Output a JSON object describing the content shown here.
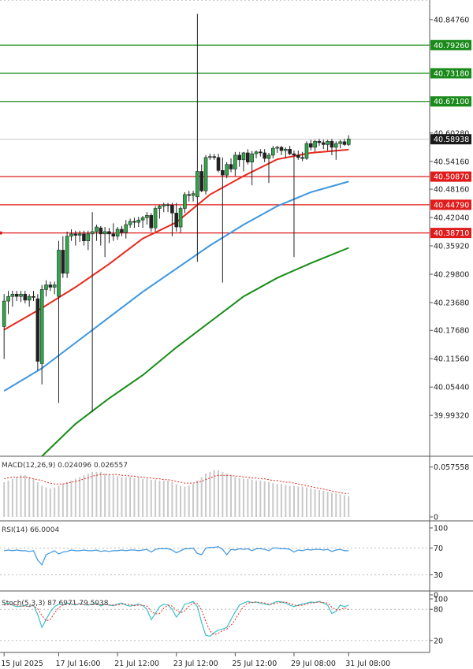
{
  "chart_data": {
    "type": "candlestick",
    "price_axis": {
      "ylim": [
        39.905,
        40.89
      ],
      "ticks": [
        "40.84760",
        "40.60280",
        "40.54160",
        "40.48160",
        "40.42040",
        "40.35920",
        "40.29800",
        "40.23680",
        "40.17680",
        "40.11560",
        "40.05440",
        "39.99320"
      ],
      "tick_values": [
        40.8476,
        40.6028,
        40.5416,
        40.4816,
        40.4204,
        40.3592,
        40.298,
        40.2368,
        40.1768,
        40.1156,
        40.0544,
        39.9932
      ]
    },
    "time_axis": {
      "labels": [
        "15 Jul 2025",
        "17 Jul 16:00",
        "21 Jul 12:00",
        "23 Jul 12:00",
        "25 Jul 12:00",
        "29 Jul 08:00",
        "31 Jul 08:00"
      ],
      "label_bar_index": [
        0,
        13,
        27,
        41,
        55,
        69,
        82
      ]
    },
    "current_price": {
      "value": 40.58938,
      "label": "40.58938"
    },
    "levels": [
      {
        "value": 40.7926,
        "label": "40.79260",
        "color": "#1a8a1a"
      },
      {
        "value": 40.7318,
        "label": "40.73180",
        "color": "#1a8a1a"
      },
      {
        "value": 40.671,
        "label": "40.67100",
        "color": "#1a8a1a"
      },
      {
        "value": 40.5087,
        "label": "40.50870",
        "color": "#e01b1b"
      },
      {
        "value": 40.4479,
        "label": "40.44790",
        "color": "#e01b1b"
      },
      {
        "value": 40.3871,
        "label": "40.38710",
        "color": "#e01b1b"
      }
    ],
    "candles": {
      "count": 83,
      "ohlc": [
        [
          40.185,
          40.255,
          40.115,
          40.24
        ],
        [
          40.24,
          40.262,
          40.212,
          40.25
        ],
        [
          40.25,
          40.262,
          40.228,
          40.255
        ],
        [
          40.255,
          40.262,
          40.24,
          40.25
        ],
        [
          40.25,
          40.262,
          40.238,
          40.255
        ],
        [
          40.255,
          40.262,
          40.235,
          40.242
        ],
        [
          40.242,
          40.255,
          40.228,
          40.25
        ],
        [
          40.25,
          40.262,
          40.24,
          40.248
        ],
        [
          40.245,
          40.255,
          40.09,
          40.11
        ],
        [
          40.105,
          40.275,
          40.06,
          40.265
        ],
        [
          40.265,
          40.285,
          40.25,
          40.275
        ],
        [
          40.275,
          40.282,
          40.262,
          40.27
        ],
        [
          40.27,
          40.282,
          40.255,
          40.275
        ],
        [
          40.25,
          40.37,
          40.02,
          40.35
        ],
        [
          40.35,
          40.38,
          40.29,
          40.3
        ],
        [
          40.3,
          40.39,
          40.29,
          40.38
        ],
        [
          40.38,
          40.395,
          40.37,
          40.385
        ],
        [
          40.385,
          40.392,
          40.36,
          40.382
        ],
        [
          40.382,
          40.392,
          40.368,
          40.385
        ],
        [
          40.385,
          40.392,
          40.36,
          40.37
        ],
        [
          40.37,
          40.392,
          40.35,
          40.385
        ],
        [
          40.385,
          40.432,
          40.0,
          40.39
        ],
        [
          40.39,
          40.405,
          40.37,
          40.4
        ],
        [
          40.398,
          40.402,
          40.36,
          40.385
        ],
        [
          40.385,
          40.4,
          40.335,
          40.39
        ],
        [
          40.39,
          40.398,
          40.365,
          40.385
        ],
        [
          40.385,
          40.408,
          40.37,
          40.38
        ],
        [
          40.38,
          40.4,
          40.372,
          40.395
        ],
        [
          40.395,
          40.402,
          40.38,
          40.388
        ],
        [
          40.388,
          40.415,
          40.375,
          40.405
        ],
        [
          40.405,
          40.418,
          40.398,
          40.412
        ],
        [
          40.412,
          40.42,
          40.398,
          40.41
        ],
        [
          40.41,
          40.422,
          40.4,
          40.415
        ],
        [
          40.415,
          40.424,
          40.398,
          40.42
        ],
        [
          40.42,
          40.432,
          40.405,
          40.425
        ],
        [
          40.425,
          40.43,
          40.39,
          40.398
        ],
        [
          40.398,
          40.445,
          40.39,
          40.44
        ],
        [
          40.44,
          40.448,
          40.418,
          40.445
        ],
        [
          40.445,
          40.452,
          40.432,
          40.448
        ],
        [
          40.448,
          40.452,
          40.432,
          40.447
        ],
        [
          40.447,
          40.452,
          40.38,
          40.43
        ],
        [
          40.43,
          40.452,
          40.39,
          40.4
        ],
        [
          40.4,
          40.445,
          40.388,
          40.44
        ],
        [
          40.44,
          40.475,
          40.43,
          40.47
        ],
        [
          40.47,
          40.478,
          40.455,
          40.468
        ],
        [
          40.468,
          40.478,
          40.455,
          40.472
        ],
        [
          40.465,
          40.86,
          40.325,
          40.52
        ],
        [
          40.52,
          40.535,
          40.475,
          40.478
        ],
        [
          40.478,
          40.555,
          40.47,
          40.55
        ],
        [
          40.55,
          40.558,
          40.545,
          40.552
        ],
        [
          40.552,
          40.558,
          40.545,
          40.55
        ],
        [
          40.55,
          40.558,
          40.518,
          40.522
        ],
        [
          40.522,
          40.55,
          40.28,
          40.512
        ],
        [
          40.512,
          40.54,
          40.505,
          40.535
        ],
        [
          40.535,
          40.548,
          40.518,
          40.525
        ],
        [
          40.525,
          40.562,
          40.51,
          40.555
        ],
        [
          40.555,
          40.562,
          40.53,
          40.545
        ],
        [
          40.545,
          40.562,
          40.52,
          40.56
        ],
        [
          40.56,
          40.568,
          40.535,
          40.54
        ],
        [
          40.54,
          40.564,
          40.49,
          40.558
        ],
        [
          40.558,
          40.565,
          40.548,
          40.562
        ],
        [
          40.562,
          40.568,
          40.552,
          40.56
        ],
        [
          40.56,
          40.568,
          40.54,
          40.548
        ],
        [
          40.548,
          40.56,
          40.495,
          40.555
        ],
        [
          40.555,
          40.575,
          40.548,
          40.57
        ],
        [
          40.57,
          40.575,
          40.56,
          40.572
        ],
        [
          40.572,
          40.575,
          40.555,
          40.565
        ],
        [
          40.565,
          40.572,
          40.548,
          40.568
        ],
        [
          40.568,
          40.575,
          40.555,
          40.558
        ],
        [
          40.558,
          40.565,
          40.335,
          40.555
        ],
        [
          40.555,
          40.565,
          40.545,
          40.55
        ],
        [
          40.55,
          40.562,
          40.542,
          40.548
        ],
        [
          40.548,
          40.585,
          40.545,
          40.58
        ],
        [
          40.58,
          40.588,
          40.565,
          40.572
        ],
        [
          40.572,
          40.588,
          40.562,
          40.585
        ],
        [
          40.585,
          40.59,
          40.575,
          40.582
        ],
        [
          40.582,
          40.588,
          40.568,
          40.578
        ],
        [
          40.578,
          40.588,
          40.565,
          40.585
        ],
        [
          40.585,
          40.59,
          40.555,
          40.572
        ],
        [
          40.572,
          40.585,
          40.545,
          40.58
        ],
        [
          40.58,
          40.588,
          40.57,
          40.584
        ],
        [
          40.584,
          40.59,
          40.575,
          40.578
        ],
        [
          40.578,
          40.598,
          40.575,
          40.59
        ]
      ]
    },
    "ma_lines": [
      {
        "color": "#e8281c",
        "points": [
          [
            0,
            40.178
          ],
          [
            9,
            40.225
          ],
          [
            17,
            40.27
          ],
          [
            25,
            40.32
          ],
          [
            33,
            40.375
          ],
          [
            41,
            40.41
          ],
          [
            49,
            40.47
          ],
          [
            57,
            40.51
          ],
          [
            65,
            40.546
          ],
          [
            73,
            40.56
          ],
          [
            82,
            40.567
          ]
        ]
      },
      {
        "color": "#3d96e0",
        "points": [
          [
            0,
            40.046
          ],
          [
            9,
            40.095
          ],
          [
            17,
            40.15
          ],
          [
            25,
            40.205
          ],
          [
            33,
            40.26
          ],
          [
            41,
            40.31
          ],
          [
            49,
            40.36
          ],
          [
            57,
            40.405
          ],
          [
            65,
            40.445
          ],
          [
            73,
            40.475
          ],
          [
            82,
            40.498
          ]
        ]
      },
      {
        "color": "#168c16",
        "points": [
          [
            9,
            39.905
          ],
          [
            17,
            39.975
          ],
          [
            25,
            40.03
          ],
          [
            33,
            40.08
          ],
          [
            41,
            40.14
          ],
          [
            49,
            40.195
          ],
          [
            57,
            40.25
          ],
          [
            65,
            40.29
          ],
          [
            73,
            40.322
          ],
          [
            82,
            40.355
          ]
        ]
      }
    ],
    "macd": {
      "label": "MACD(12,26,9) 0.024096 0.026557",
      "axis_ticks": [
        "0.057558",
        "0"
      ],
      "ylim": [
        0,
        0.06
      ],
      "histogram": [
        0.04,
        0.042,
        0.044,
        0.046,
        0.048,
        0.048,
        0.046,
        0.044,
        0.04,
        0.036,
        0.034,
        0.033,
        0.034,
        0.036,
        0.038,
        0.04,
        0.042,
        0.044,
        0.046,
        0.048,
        0.05,
        0.052,
        0.052,
        0.052,
        0.05,
        0.049,
        0.048,
        0.047,
        0.046,
        0.046,
        0.046,
        0.045,
        0.045,
        0.044,
        0.044,
        0.043,
        0.043,
        0.042,
        0.042,
        0.042,
        0.04,
        0.038,
        0.036,
        0.035,
        0.036,
        0.038,
        0.042,
        0.046,
        0.05,
        0.052,
        0.054,
        0.054,
        0.052,
        0.05,
        0.048,
        0.046,
        0.045,
        0.044,
        0.044,
        0.043,
        0.042,
        0.042,
        0.041,
        0.04,
        0.039,
        0.038,
        0.038,
        0.037,
        0.036,
        0.036,
        0.035,
        0.035,
        0.034,
        0.033,
        0.032,
        0.031,
        0.03,
        0.029,
        0.028,
        0.027,
        0.026,
        0.025,
        0.024
      ],
      "signal": [
        0.044,
        0.045,
        0.046,
        0.046,
        0.046,
        0.046,
        0.045,
        0.044,
        0.043,
        0.042,
        0.04,
        0.039,
        0.038,
        0.038,
        0.038,
        0.039,
        0.04,
        0.041,
        0.042,
        0.044,
        0.045,
        0.047,
        0.048,
        0.049,
        0.049,
        0.049,
        0.049,
        0.049,
        0.048,
        0.048,
        0.047,
        0.047,
        0.046,
        0.046,
        0.045,
        0.045,
        0.044,
        0.044,
        0.043,
        0.043,
        0.042,
        0.041,
        0.04,
        0.039,
        0.039,
        0.039,
        0.04,
        0.041,
        0.043,
        0.045,
        0.047,
        0.048,
        0.048,
        0.048,
        0.048,
        0.047,
        0.047,
        0.046,
        0.046,
        0.045,
        0.045,
        0.044,
        0.044,
        0.043,
        0.042,
        0.042,
        0.041,
        0.04,
        0.04,
        0.039,
        0.038,
        0.037,
        0.036,
        0.035,
        0.034,
        0.033,
        0.032,
        0.031,
        0.03,
        0.029,
        0.028,
        0.027,
        0.027
      ]
    },
    "rsi": {
      "label": "RSI(14) 66.0004",
      "axis_ticks": [
        "100",
        "70",
        "30",
        "0"
      ],
      "tick_values": [
        100,
        70,
        30,
        0
      ],
      "values": [
        66,
        67,
        66,
        67,
        66,
        66,
        65,
        66,
        52,
        45,
        60,
        63,
        66,
        61,
        64,
        65,
        67,
        66,
        66,
        67,
        66,
        66,
        67,
        65,
        66,
        65,
        66,
        66,
        67,
        66,
        67,
        67,
        66,
        67,
        68,
        64,
        68,
        69,
        69,
        69,
        67,
        63,
        66,
        69,
        69,
        70,
        62,
        60,
        70,
        71,
        71,
        72,
        68,
        60,
        68,
        67,
        69,
        68,
        69,
        66,
        69,
        69,
        68,
        66,
        70,
        70,
        69,
        69,
        68,
        64,
        67,
        66,
        68,
        67,
        68,
        68,
        67,
        68,
        65,
        67,
        68,
        66,
        66
      ]
    },
    "stoch": {
      "label": "Stoch(5,3,3) 87.6971 79.5038",
      "axis_ticks": [
        "100",
        "80",
        "20"
      ],
      "tick_values": [
        100,
        80,
        20
      ],
      "k": [
        90,
        92,
        88,
        85,
        86,
        87,
        85,
        88,
        70,
        45,
        60,
        75,
        85,
        90,
        88,
        92,
        90,
        88,
        91,
        89,
        88,
        90,
        92,
        86,
        90,
        88,
        87,
        90,
        92,
        88,
        86,
        88,
        90,
        87,
        80,
        60,
        72,
        85,
        90,
        88,
        80,
        65,
        75,
        90,
        92,
        95,
        85,
        55,
        30,
        28,
        35,
        40,
        42,
        45,
        60,
        75,
        88,
        92,
        95,
        93,
        94,
        92,
        90,
        88,
        92,
        95,
        94,
        92,
        88,
        85,
        88,
        90,
        92,
        94,
        93,
        95,
        92,
        88,
        72,
        76,
        88,
        85,
        87.7
      ],
      "d": [
        88,
        89,
        90,
        88,
        86,
        86,
        86,
        87,
        81,
        68,
        58,
        60,
        73,
        83,
        88,
        90,
        90,
        90,
        90,
        89,
        89,
        89,
        90,
        89,
        89,
        88,
        88,
        88,
        90,
        90,
        89,
        87,
        88,
        88,
        86,
        76,
        71,
        72,
        82,
        88,
        86,
        78,
        73,
        77,
        86,
        92,
        91,
        78,
        57,
        38,
        31,
        34,
        39,
        42,
        49,
        60,
        74,
        85,
        92,
        93,
        94,
        93,
        92,
        90,
        90,
        92,
        94,
        94,
        91,
        88,
        87,
        88,
        90,
        92,
        93,
        94,
        93,
        92,
        84,
        79,
        79,
        83,
        79.5
      ]
    }
  }
}
